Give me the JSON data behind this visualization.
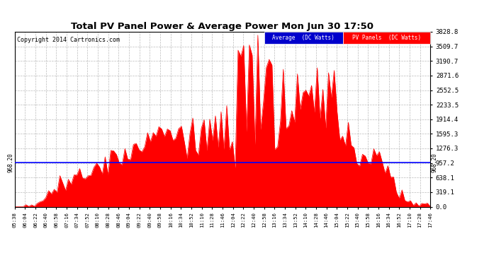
{
  "title": "Total PV Panel Power & Average Power Mon Jun 30 17:50",
  "copyright": "Copyright 2014 Cartronics.com",
  "average_value": 968.2,
  "y_max": 3828.8,
  "y_ticks": [
    0.0,
    319.1,
    638.1,
    957.2,
    1276.3,
    1595.3,
    1914.4,
    2233.5,
    2552.5,
    2871.6,
    3190.7,
    3509.7,
    3828.8
  ],
  "pv_color": "#FF0000",
  "avg_color": "#0000FF",
  "background_color": "#FFFFFF",
  "grid_color": "#AAAAAA",
  "legend_avg_bg": "#0000CC",
  "legend_pv_bg": "#FF0000",
  "x_tick_labels": [
    "05:38",
    "06:04",
    "06:22",
    "06:40",
    "06:58",
    "07:16",
    "07:34",
    "07:52",
    "08:10",
    "08:28",
    "08:46",
    "09:04",
    "09:22",
    "09:40",
    "09:58",
    "10:16",
    "10:34",
    "10:52",
    "11:10",
    "11:28",
    "11:46",
    "12:04",
    "12:22",
    "12:40",
    "12:58",
    "13:16",
    "13:34",
    "13:52",
    "14:10",
    "14:28",
    "14:46",
    "15:04",
    "15:22",
    "15:40",
    "15:58",
    "16:16",
    "16:34",
    "16:52",
    "17:10",
    "17:28",
    "17:46"
  ],
  "avg_label": "Average  (DC Watts)",
  "pv_label": "PV Panels  (DC Watts)",
  "avg_annotation": "968.20",
  "figwidth": 6.9,
  "figheight": 3.75,
  "dpi": 100
}
